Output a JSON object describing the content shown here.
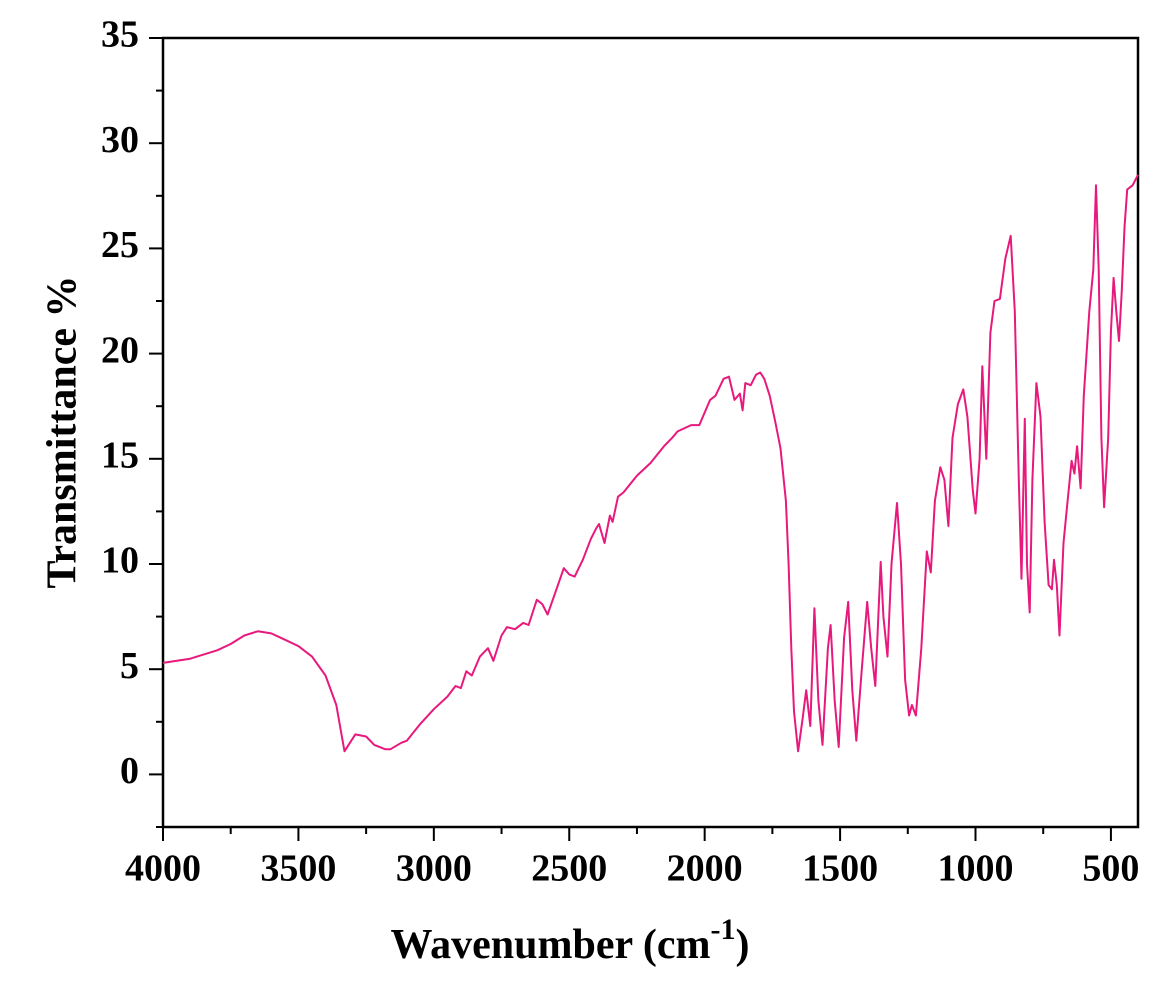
{
  "chart_data": {
    "type": "line",
    "xlabel": [
      "Wavenumber (cm",
      "-1",
      ")"
    ],
    "ylabel": "Transmittance %",
    "xlim": [
      4000,
      400
    ],
    "ylim": [
      -2.5,
      35
    ],
    "xticks": [
      4000,
      3500,
      3000,
      2500,
      2000,
      1500,
      1000,
      500
    ],
    "xminor": [
      3750,
      3250,
      2750,
      2250,
      1750,
      1250,
      750
    ],
    "yticks": [
      0,
      5,
      10,
      15,
      20,
      25,
      30,
      35
    ],
    "yminor": [
      -2.5,
      2.5,
      7.5,
      12.5,
      17.5,
      22.5,
      27.5,
      32.5
    ],
    "series": [
      {
        "color": "#e8197d",
        "x": [
          4000,
          3900,
          3800,
          3750,
          3700,
          3650,
          3600,
          3550,
          3500,
          3450,
          3400,
          3360,
          3330,
          3310,
          3290,
          3250,
          3220,
          3180,
          3160,
          3120,
          3100,
          3050,
          3000,
          2950,
          2920,
          2900,
          2880,
          2860,
          2830,
          2800,
          2780,
          2750,
          2730,
          2700,
          2670,
          2650,
          2620,
          2600,
          2580,
          2550,
          2520,
          2500,
          2480,
          2450,
          2420,
          2400,
          2390,
          2370,
          2350,
          2340,
          2320,
          2300,
          2250,
          2200,
          2150,
          2120,
          2100,
          2050,
          2020,
          2000,
          1980,
          1960,
          1930,
          1910,
          1890,
          1870,
          1860,
          1850,
          1830,
          1810,
          1795,
          1780,
          1760,
          1740,
          1720,
          1700,
          1690,
          1680,
          1670,
          1655,
          1640,
          1625,
          1610,
          1595,
          1580,
          1565,
          1545,
          1535,
          1520,
          1505,
          1485,
          1470,
          1455,
          1440,
          1420,
          1400,
          1385,
          1370,
          1350,
          1340,
          1325,
          1310,
          1290,
          1275,
          1260,
          1245,
          1235,
          1220,
          1200,
          1180,
          1165,
          1150,
          1130,
          1115,
          1100,
          1085,
          1065,
          1045,
          1030,
          1010,
          1000,
          985,
          975,
          960,
          945,
          930,
          910,
          890,
          870,
          855,
          840,
          830,
          818,
          810,
          800,
          790,
          775,
          760,
          745,
          730,
          718,
          710,
          700,
          690,
          675,
          660,
          645,
          635,
          625,
          612,
          600,
          580,
          565,
          555,
          545,
          535,
          525,
          510,
          500,
          490,
          480,
          470,
          460,
          450,
          440,
          420,
          400
        ],
        "values": [
          5.3,
          5.5,
          5.9,
          6.2,
          6.6,
          6.8,
          6.7,
          6.4,
          6.1,
          5.6,
          4.7,
          3.3,
          1.1,
          1.5,
          1.9,
          1.8,
          1.4,
          1.2,
          1.2,
          1.5,
          1.6,
          2.4,
          3.1,
          3.7,
          4.2,
          4.1,
          4.9,
          4.7,
          5.6,
          6.0,
          5.4,
          6.6,
          7.0,
          6.9,
          7.2,
          7.1,
          8.3,
          8.1,
          7.6,
          8.7,
          9.8,
          9.5,
          9.4,
          10.2,
          11.2,
          11.7,
          11.9,
          11.0,
          12.3,
          12.0,
          13.2,
          13.4,
          14.2,
          14.8,
          15.6,
          16.0,
          16.3,
          16.6,
          16.6,
          17.2,
          17.8,
          18.0,
          18.8,
          18.9,
          17.8,
          18.1,
          17.3,
          18.6,
          18.5,
          19.0,
          19.1,
          18.8,
          18.0,
          16.8,
          15.5,
          13,
          10,
          6,
          3,
          1.1,
          2.5,
          4.0,
          2.3,
          7.9,
          3.5,
          1.4,
          6.0,
          7.1,
          3.5,
          1.3,
          6.5,
          8.2,
          4.0,
          1.6,
          5.0,
          8.2,
          6.0,
          4.2,
          10.1,
          7.5,
          5.6,
          10.0,
          12.9,
          10.0,
          4.5,
          2.8,
          3.3,
          2.8,
          6.0,
          10.6,
          9.6,
          13.0,
          14.6,
          14.0,
          11.8,
          16.0,
          17.6,
          18.3,
          17.0,
          13.5,
          12.4,
          15.0,
          19.4,
          15.0,
          21.0,
          22.5,
          22.6,
          24.5,
          25.6,
          22.0,
          14,
          9.3,
          16.9,
          10,
          7.7,
          14,
          18.6,
          17,
          12,
          9,
          8.8,
          10.2,
          9,
          6.6,
          11,
          13,
          14.9,
          14.3,
          15.6,
          13.6,
          18,
          22,
          24,
          28.0,
          24,
          16,
          12.7,
          16,
          21,
          23.6,
          22,
          20.6,
          23,
          26,
          27.8,
          28.0,
          28.5
        ]
      }
    ]
  }
}
